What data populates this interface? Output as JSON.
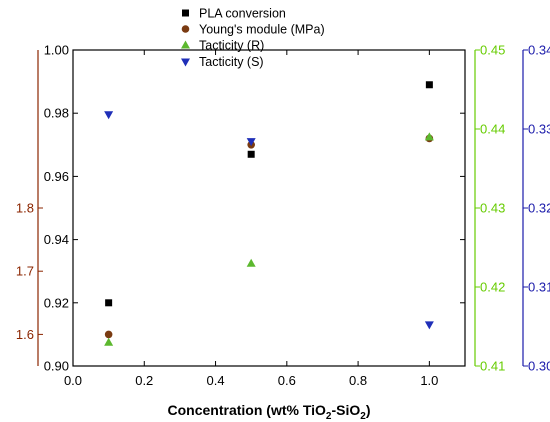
{
  "chart_data": {
    "type": "scatter",
    "xlabel": {
      "prefix": "Concentration (wt% TiO",
      "sub1": "2",
      "middle": "-SiO",
      "sub2": "2",
      "suffix": ")"
    },
    "x_axis": {
      "range": [
        0.0,
        1.1
      ],
      "ticks": [
        0.0,
        0.2,
        0.4,
        0.6,
        0.8,
        1.0
      ],
      "tick_labels": [
        "0.0",
        "0.2",
        "0.4",
        "0.6",
        "0.8",
        "1.0"
      ]
    },
    "y_axes": [
      {
        "id": "pla",
        "position": "left-inner",
        "color": "#000000",
        "range": [
          0.9,
          1.0
        ],
        "ticks": [
          0.9,
          0.92,
          0.94,
          0.96,
          0.98,
          1.0
        ],
        "tick_labels": [
          "0.90",
          "0.92",
          "0.94",
          "0.96",
          "0.98",
          "1.00"
        ]
      },
      {
        "id": "modulus",
        "position": "left-outer",
        "color": "#8b2500",
        "range": [
          1.55,
          2.05
        ],
        "ticks": [
          1.6,
          1.7,
          1.8
        ],
        "tick_labels": [
          "1.6",
          "1.7",
          "1.8"
        ]
      },
      {
        "id": "tacticity_r",
        "position": "right-inner",
        "color": "#66cc00",
        "range": [
          0.41,
          0.45
        ],
        "ticks": [
          0.41,
          0.42,
          0.43,
          0.44,
          0.45
        ],
        "tick_labels": [
          "0.41",
          "0.42",
          "0.43",
          "0.44",
          "0.45"
        ]
      },
      {
        "id": "tacticity_s",
        "position": "right-outer",
        "color": "#1a1aaa",
        "range": [
          0.3,
          0.34
        ],
        "ticks": [
          0.3,
          0.31,
          0.32,
          0.33,
          0.34
        ],
        "tick_labels": [
          "0.30",
          "0.31",
          "0.32",
          "0.33",
          "0.34"
        ]
      }
    ],
    "series": [
      {
        "name": "PLA conversion",
        "axis": "pla",
        "marker": "square",
        "color": "#000000",
        "x": [
          0.1,
          0.5,
          1.0
        ],
        "y": [
          0.92,
          0.967,
          0.989
        ]
      },
      {
        "name": "Young's module (MPa)",
        "axis": "modulus",
        "marker": "circle",
        "color": "#7a3b12",
        "x": [
          0.1,
          0.5,
          1.0
        ],
        "y": [
          1.6,
          1.9,
          1.91
        ]
      },
      {
        "name": "Tacticity (R)",
        "axis": "tacticity_r",
        "marker": "triangle-up",
        "color": "#5cb82e",
        "x": [
          0.1,
          0.5,
          1.0
        ],
        "y": [
          0.413,
          0.423,
          0.439
        ]
      },
      {
        "name": "Tacticity (S)",
        "axis": "tacticity_s",
        "marker": "triangle-down",
        "color": "#1f2fb8",
        "x": [
          0.1,
          0.5,
          1.0
        ],
        "y": [
          0.3318,
          0.3284,
          0.3052
        ]
      }
    ],
    "legend_placement": "top-center",
    "grid": false
  }
}
